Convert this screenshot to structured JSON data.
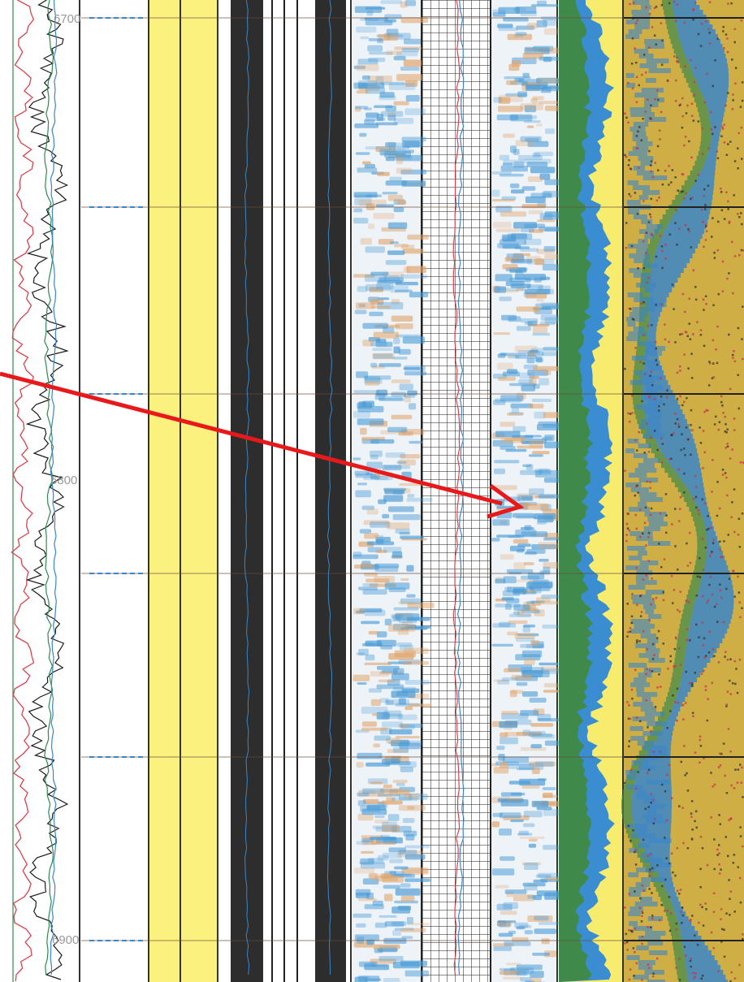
{
  "depth_labels": [
    "6700",
    "6800",
    "6900"
  ],
  "colors": {
    "curve_red": "#d9414e",
    "curve_black": "#1a1a1a",
    "curve_green": "#2f8a4e",
    "curve_blue": "#3a86c8",
    "track_yellow": "#fbf17e",
    "track_dark": "#2d2d2d",
    "image_blue": "#4a9bd6",
    "image_orange": "#e0a46a",
    "fill_green": "#3f8a4a",
    "fill_blue": "#3a8dd0",
    "fill_yellow": "#f7ec6e",
    "mosaic_yellow": "#d8b84a",
    "mosaic_red": "#c8344a",
    "arrow_red": "#e8191a"
  },
  "marker_count": 6,
  "annotation": {
    "type": "arrow",
    "color_key": "arrow_red"
  }
}
